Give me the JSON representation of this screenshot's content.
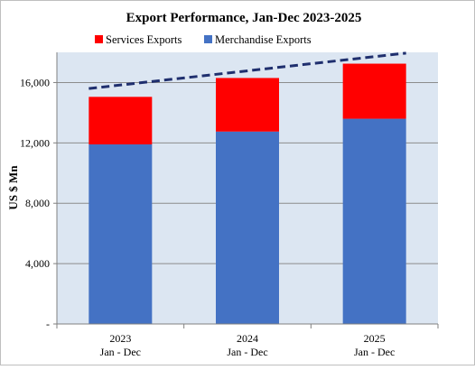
{
  "chart_data": {
    "type": "bar",
    "stacked": true,
    "title": "Export Performance, Jan-Dec  2023-2025",
    "ylabel": "US $ Mn",
    "xlabel": "",
    "categories": [
      {
        "year": "2023",
        "period": "Jan - Dec"
      },
      {
        "year": "2024",
        "period": "Jan - Dec"
      },
      {
        "year": "2025",
        "period": "Jan - Dec"
      }
    ],
    "series": [
      {
        "name": "Merchandise Exports",
        "color": "#4472C4",
        "values": [
          11900,
          12750,
          13600
        ]
      },
      {
        "name": "Services Exports",
        "color": "#FF0000",
        "values": [
          3150,
          3550,
          3650
        ]
      }
    ],
    "totals": [
      15050,
      16300,
      17250
    ],
    "trendline": {
      "style": "dashed",
      "color": "#1F2F6E",
      "from": 15600,
      "to": 17950
    },
    "ylim": [
      0,
      18000
    ],
    "yticks": [
      {
        "value": 0,
        "label": "-"
      },
      {
        "value": 4000,
        "label": "4,000"
      },
      {
        "value": 8000,
        "label": "8,000"
      },
      {
        "value": 12000,
        "label": "12,000"
      },
      {
        "value": 16000,
        "label": "16,000"
      }
    ],
    "grid": true,
    "plot_background": "#DCE6F2",
    "legend_position": "top"
  }
}
